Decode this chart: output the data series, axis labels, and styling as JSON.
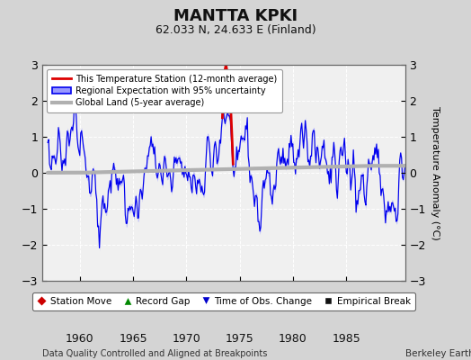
{
  "title": "MANTTA KPKI",
  "subtitle": "62.033 N, 24.633 E (Finland)",
  "ylabel": "Temperature Anomaly (°C)",
  "xlabel_bottom": "Data Quality Controlled and Aligned at Breakpoints",
  "xlabel_right": "Berkeley Earth",
  "ylim": [
    -3,
    3
  ],
  "xlim": [
    1956.5,
    1990.5
  ],
  "xticks": [
    1960,
    1965,
    1970,
    1975,
    1980,
    1985
  ],
  "yticks": [
    -3,
    -2,
    -1,
    0,
    1,
    2,
    3
  ],
  "fig_background": "#d4d4d4",
  "plot_background": "#f0f0f0",
  "grid_color": "#ffffff",
  "regional_color": "#0000ee",
  "regional_fill_color": "#9999ff",
  "station_color": "#dd0000",
  "global_color": "#b0b0b0",
  "title_fontsize": 13,
  "subtitle_fontsize": 9,
  "tick_fontsize": 9,
  "ylabel_fontsize": 8
}
